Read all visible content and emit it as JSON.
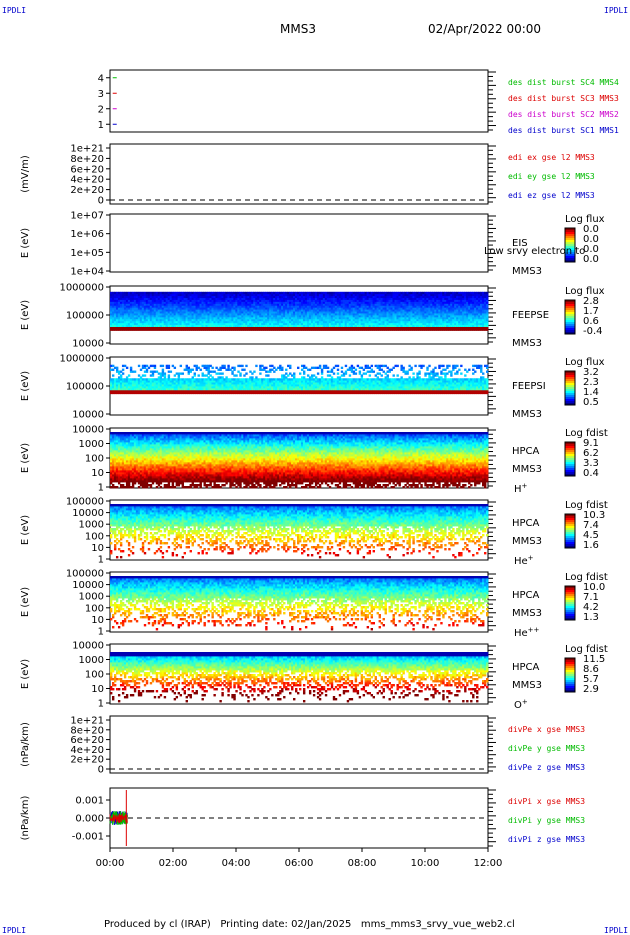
{
  "header": {
    "corner_tl": "IPDLI",
    "corner_tr": "IPDLI",
    "corner_bl": "IPDLI",
    "corner_br": "IPDLI",
    "title": "MMS3",
    "date": "02/Apr/2022 00:00"
  },
  "footer": {
    "text": "Produced by cl (IRAP)   Printing date: 02/Jan/2025   mms_mms3_srvy_vue_web2.cl"
  },
  "colors": {
    "red": "#dd0000",
    "green": "#00bb00",
    "blue": "#0000cc",
    "magenta": "#cc00cc"
  },
  "chart_data": [
    {
      "type": "scatter",
      "id": "burst",
      "ylim": [
        0.5,
        4.5
      ],
      "ytick_labels": [
        "4",
        "3",
        "2",
        "1"
      ],
      "series": [
        {
          "name": "des dist burst SC1 MMS1",
          "color": "#0000cc",
          "y": 4,
          "x_hours": [
            0.15
          ]
        },
        {
          "name": "des dist burst SC2 MMS2",
          "color": "#cc00cc",
          "y": 3,
          "x_hours": [
            0.15
          ]
        },
        {
          "name": "des dist burst SC3 MMS3",
          "color": "#dd0000",
          "y": 2,
          "x_hours": [
            0.15
          ]
        },
        {
          "name": "des dist burst SC4 MMS4",
          "color": "#00bb00",
          "y": 1,
          "x_hours": [
            0.15
          ]
        }
      ]
    },
    {
      "type": "line",
      "id": "edi",
      "ylabel": "(mV/m)",
      "ytick_labels": [
        "1e+21",
        "8e+20",
        "6e+20",
        "4e+20",
        "2e+20",
        "0"
      ],
      "zero_line": true,
      "legend": [
        {
          "text": "edi ex gse l2 MMS3",
          "color": "#dd0000"
        },
        {
          "text": "edi ey gse l2 MMS3",
          "color": "#00bb00"
        },
        {
          "text": "edi ez gse l2 MMS3",
          "color": "#0000cc"
        }
      ]
    },
    {
      "type": "heatmap",
      "id": "eis",
      "ylabel": "E (eV)",
      "ytick_labels": [
        "1e+07",
        "1e+06",
        "1e+05",
        "1e+04"
      ],
      "side_labels": [
        "EIS",
        "MMS3"
      ],
      "overlay_text": "Low srvy electron to",
      "cbar_title": "Log flux",
      "cbar_ticks": [
        "0.0",
        "0.0",
        "0.0",
        "0.0"
      ]
    },
    {
      "type": "heatmap",
      "id": "feepse",
      "ylabel": "E (eV)",
      "ytick_labels": [
        "1000000",
        "100000",
        "10000"
      ],
      "side_labels": [
        "FEEPSE",
        "MMS3"
      ],
      "cbar_title": "Log flux",
      "cbar_ticks": [
        "2.8",
        "1.7",
        "0.6",
        "-0.4"
      ]
    },
    {
      "type": "heatmap",
      "id": "feepsi",
      "ylabel": "E (eV)",
      "ytick_labels": [
        "1000000",
        "100000",
        "10000"
      ],
      "side_labels": [
        "FEEPSI",
        "MMS3"
      ],
      "cbar_title": "Log flux",
      "cbar_ticks": [
        "3.2",
        "2.3",
        "1.4",
        "0.5"
      ]
    },
    {
      "type": "heatmap",
      "id": "hpca_h",
      "ylabel": "E (eV)",
      "ytick_labels": [
        "10000",
        "1000",
        "100",
        "10",
        "1"
      ],
      "side_labels": [
        "HPCA",
        "MMS3"
      ],
      "species": "H",
      "species_sup": "+",
      "cbar_title": "Log fdist",
      "cbar_ticks": [
        "9.1",
        "6.2",
        "3.3",
        "0.4"
      ]
    },
    {
      "type": "heatmap",
      "id": "hpca_he",
      "ylabel": "E (eV)",
      "ytick_labels": [
        "100000",
        "10000",
        "1000",
        "100",
        "10",
        "1"
      ],
      "side_labels": [
        "HPCA",
        "MMS3"
      ],
      "species": "He",
      "species_sup": "+",
      "cbar_title": "Log fdist",
      "cbar_ticks": [
        "10.3",
        "7.4",
        "4.5",
        "1.6"
      ]
    },
    {
      "type": "heatmap",
      "id": "hpca_he2",
      "ylabel": "E (eV)",
      "ytick_labels": [
        "100000",
        "10000",
        "1000",
        "100",
        "10",
        "1"
      ],
      "side_labels": [
        "HPCA",
        "MMS3"
      ],
      "species": "He",
      "species_sup": "++",
      "cbar_title": "Log fdist",
      "cbar_ticks": [
        "10.0",
        "7.1",
        "4.2",
        "1.3"
      ]
    },
    {
      "type": "heatmap",
      "id": "hpca_o",
      "ylabel": "E (eV)",
      "ytick_labels": [
        "10000",
        "1000",
        "100",
        "10",
        "1"
      ],
      "side_labels": [
        "HPCA",
        "MMS3"
      ],
      "species": "O",
      "species_sup": "+",
      "cbar_title": "Log fdist",
      "cbar_ticks": [
        "11.5",
        "8.6",
        "5.7",
        "2.9"
      ]
    },
    {
      "type": "line",
      "id": "divpe",
      "ylabel": "(nPa/km)",
      "ytick_labels": [
        "1e+21",
        "8e+20",
        "6e+20",
        "4e+20",
        "2e+20",
        "0"
      ],
      "zero_line": true,
      "legend": [
        {
          "text": "divPe x gse MMS3",
          "color": "#dd0000"
        },
        {
          "text": "divPe y gse MMS3",
          "color": "#00bb00"
        },
        {
          "text": "divPe z gse MMS3",
          "color": "#0000cc"
        }
      ]
    },
    {
      "type": "line",
      "id": "divpi",
      "ylabel": "(nPa/km)",
      "ylim": [
        -0.0015,
        0.0015
      ],
      "ytick_labels": [
        "0.001",
        "0.000",
        "-0.001"
      ],
      "zero_line": true,
      "data_window_hours": [
        0.0,
        0.55
      ],
      "legend": [
        {
          "text": "divPi x gse MMS3",
          "color": "#dd0000"
        },
        {
          "text": "divPi y gse MMS3",
          "color": "#00bb00"
        },
        {
          "text": "divPi z gse MMS3",
          "color": "#0000cc"
        }
      ]
    }
  ],
  "x_axis": {
    "xlim_hours": [
      0,
      12
    ],
    "tick_labels": [
      "00:00",
      "02:00",
      "04:00",
      "06:00",
      "08:00",
      "10:00",
      "12:00"
    ]
  }
}
